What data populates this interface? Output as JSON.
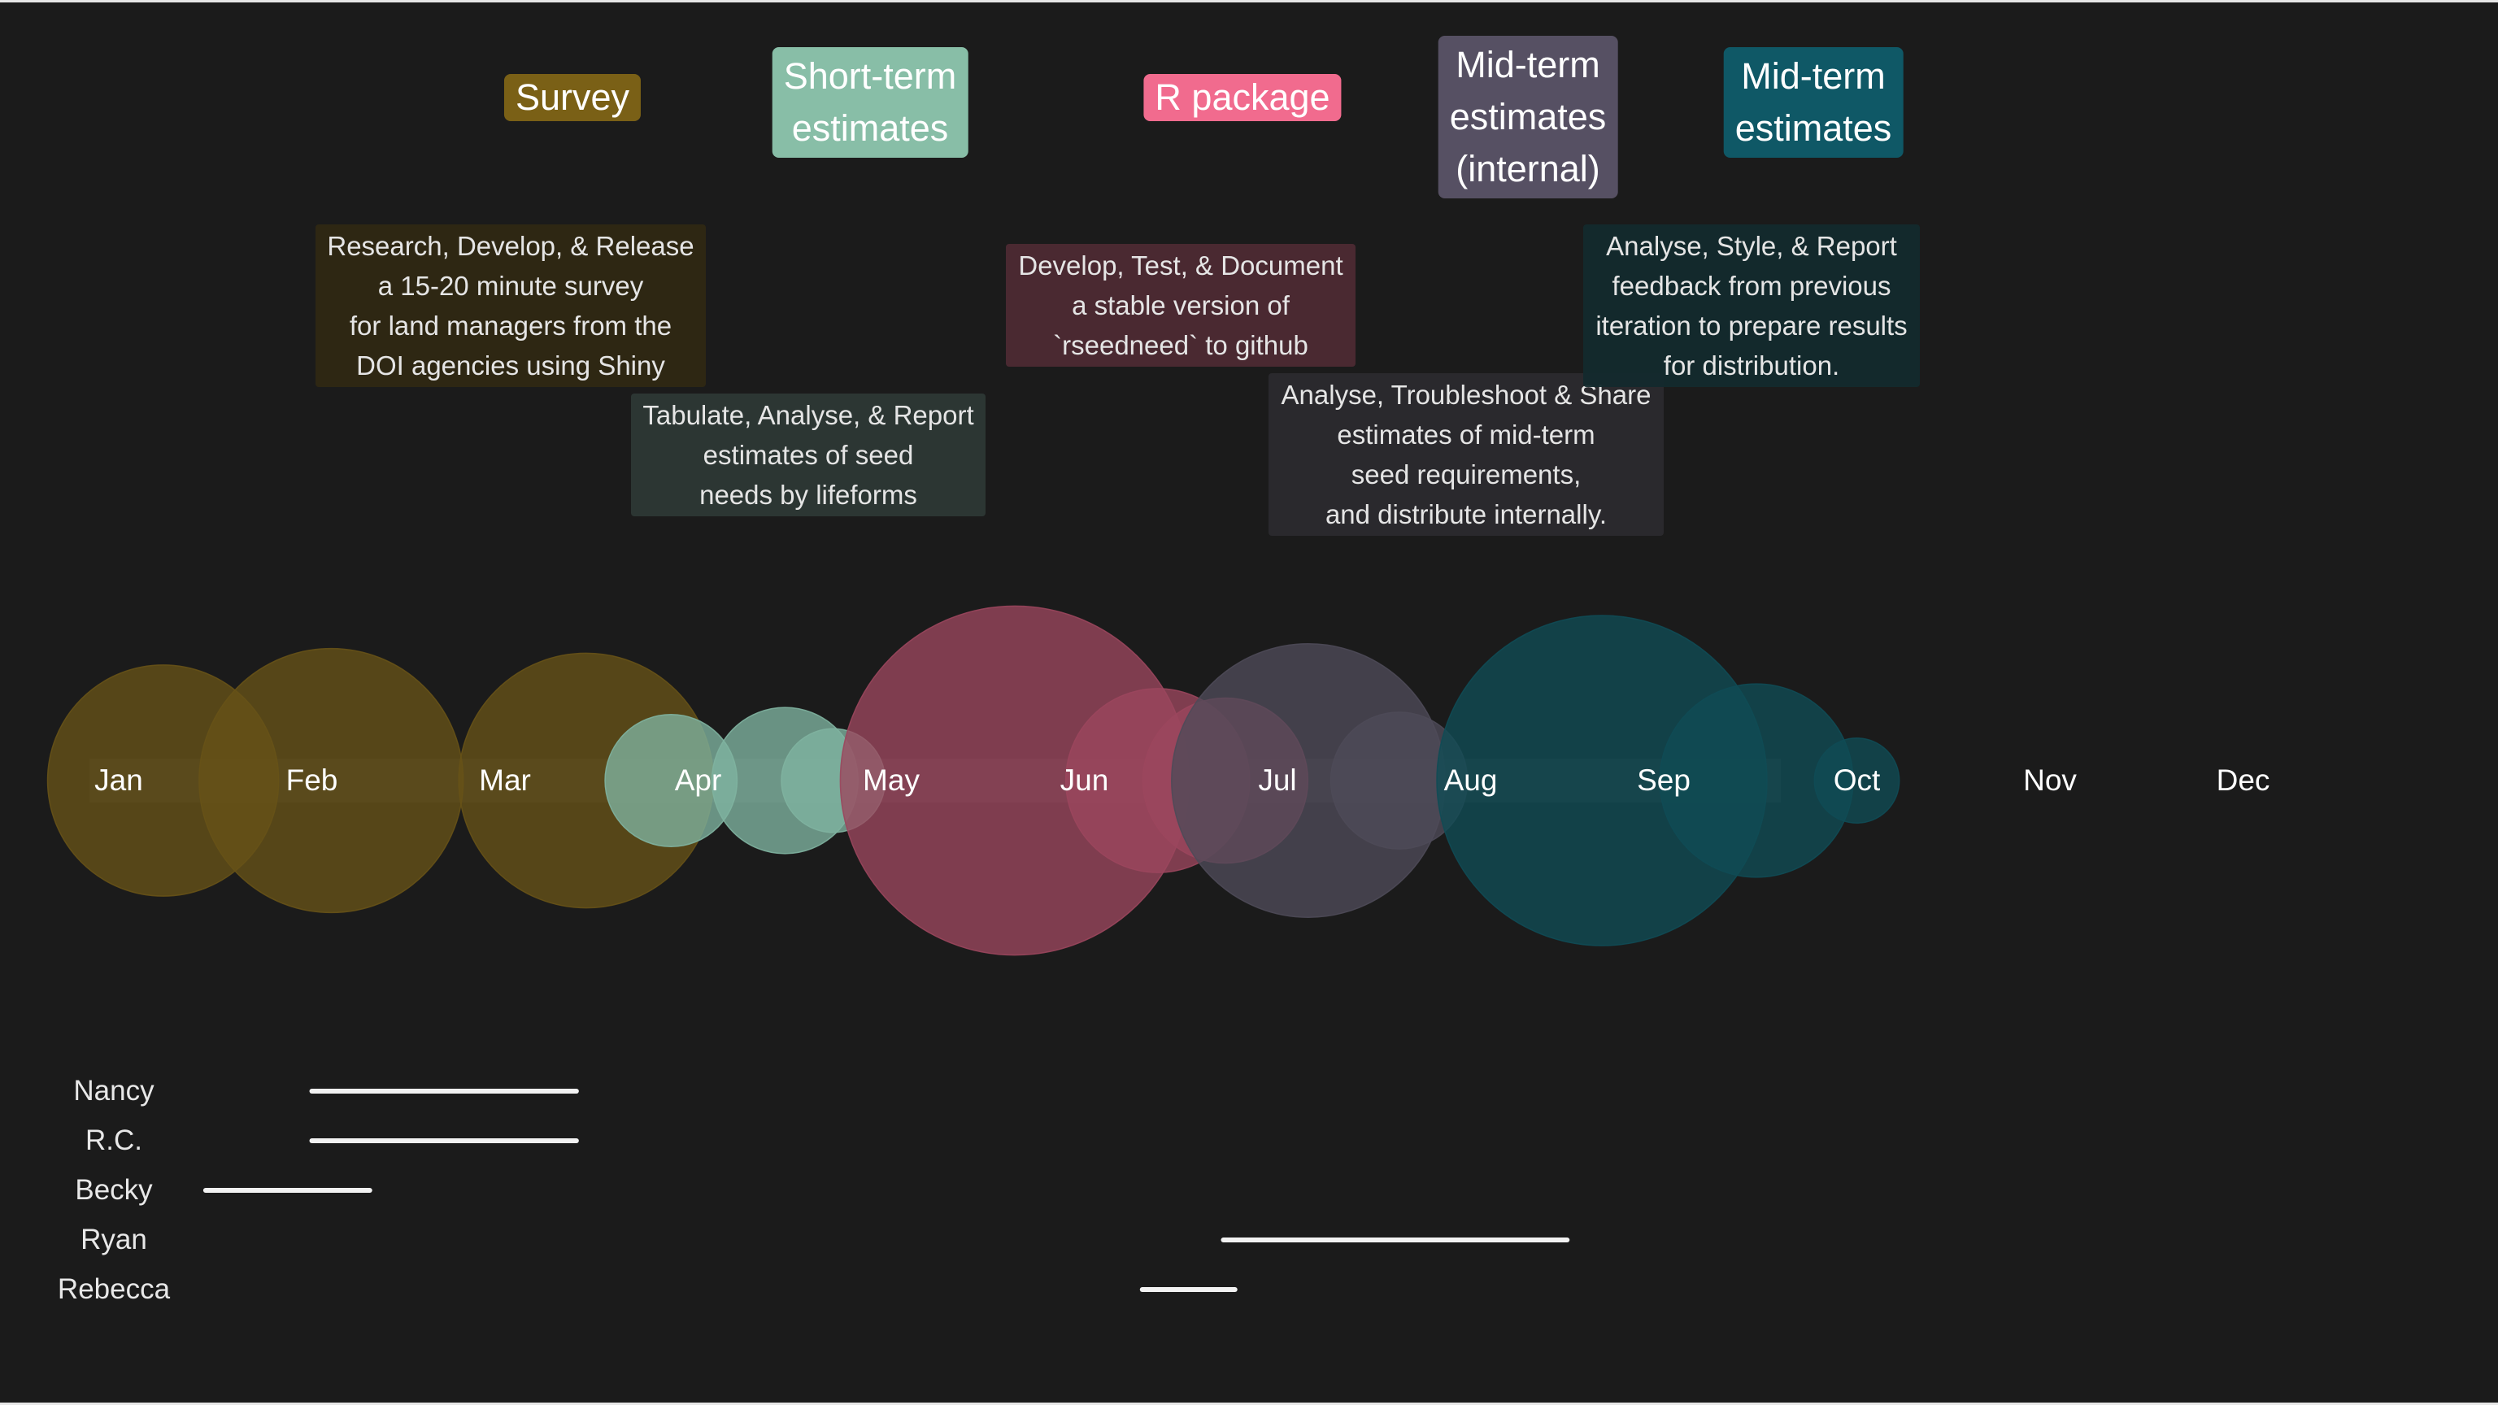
{
  "chart_data": {
    "type": "timeline",
    "months": [
      "Jan",
      "Feb",
      "Mar",
      "Apr",
      "May",
      "Jun",
      "Jul",
      "Aug",
      "Sep",
      "Oct",
      "Nov",
      "Dec"
    ],
    "phases": [
      {
        "id": "survey",
        "label": "Survey",
        "color": "#7a6016",
        "bubble_color": "#675217",
        "start_month": 1.0,
        "end_month": 3.0
      },
      {
        "id": "short",
        "label": "Short-term\nestimates",
        "color": "#88bea7",
        "bubble_color": "#7fb3a0",
        "start_month": 3.8,
        "end_month": 4.2
      },
      {
        "id": "rpkg",
        "label": "R package",
        "color": "#f16b8e",
        "bubble_color": "#9b465d",
        "start_month": 4.6,
        "end_month": 6.7
      },
      {
        "id": "midint",
        "label": "Mid-term\nestimates\n(internal)",
        "color": "#565063",
        "bubble_color": "#4e4a58",
        "start_month": 7.6,
        "end_month": 7.6
      },
      {
        "id": "mid",
        "label": "Mid-term\nestimates",
        "color": "#0f5866",
        "bubble_color": "#0f4b55",
        "start_month": 8.7,
        "end_month": 9.0
      }
    ],
    "tasks": [
      {
        "phase": "survey",
        "text": "Research, Develop, & Release\na 15-20 minute survey\nfor land managers from the\nDOI agencies using Shiny",
        "color": "#302813"
      },
      {
        "phase": "short",
        "text": "Tabulate, Analyse, & Report\nestimates of seed\nneeds by lifeforms",
        "color": "#2d3835"
      },
      {
        "phase": "rpkg",
        "text": "Develop, Test, & Document\na stable version of\n`rseedneed` to github",
        "color": "#4d2a33"
      },
      {
        "phase": "midint",
        "text": "Analyse, Troubleshoot & Share\nestimates of mid-term\nseed requirements,\nand distribute internally.",
        "color": "#2b2a2e"
      },
      {
        "phase": "mid",
        "text": "Analyse, Style, & Report\nfeedback from previous\niteration to prepare results\nfor distribution.",
        "color": "#132a2d"
      }
    ],
    "bubbles": [
      {
        "phase": "survey",
        "month": 1.23,
        "size": 0.49
      },
      {
        "phase": "survey",
        "month": 2.1,
        "size": 0.56
      },
      {
        "phase": "survey",
        "month": 3.42,
        "size": 0.54
      },
      {
        "phase": "short",
        "month": 3.86,
        "size": 0.28
      },
      {
        "phase": "short",
        "month": 4.45,
        "size": 0.31
      },
      {
        "phase": "short",
        "month": 4.7,
        "size": 0.22
      },
      {
        "phase": "rpkg",
        "month": 5.64,
        "size": 0.74
      },
      {
        "phase": "rpkg",
        "month": 6.38,
        "size": 0.39
      },
      {
        "phase": "rpkg",
        "month": 6.73,
        "size": 0.35
      },
      {
        "phase": "midint",
        "month": 7.16,
        "size": 0.58
      },
      {
        "phase": "midint",
        "month": 7.63,
        "size": 0.29
      },
      {
        "phase": "mid",
        "month": 8.68,
        "size": 0.7
      },
      {
        "phase": "mid",
        "month": 9.48,
        "size": 0.41
      },
      {
        "phase": "mid",
        "month": 10.0,
        "size": 0.18
      }
    ],
    "people": [
      {
        "name": "Nancy",
        "start_month": 2.0,
        "end_month": 3.37
      },
      {
        "name": "R.C.",
        "start_month": 2.0,
        "end_month": 3.37
      },
      {
        "name": "Becky",
        "start_month": 1.45,
        "end_month": 2.3
      },
      {
        "name": "Ryan",
        "start_month": 6.72,
        "end_month": 8.5
      },
      {
        "name": "Rebecca",
        "start_month": 6.3,
        "end_month": 6.78
      }
    ]
  }
}
